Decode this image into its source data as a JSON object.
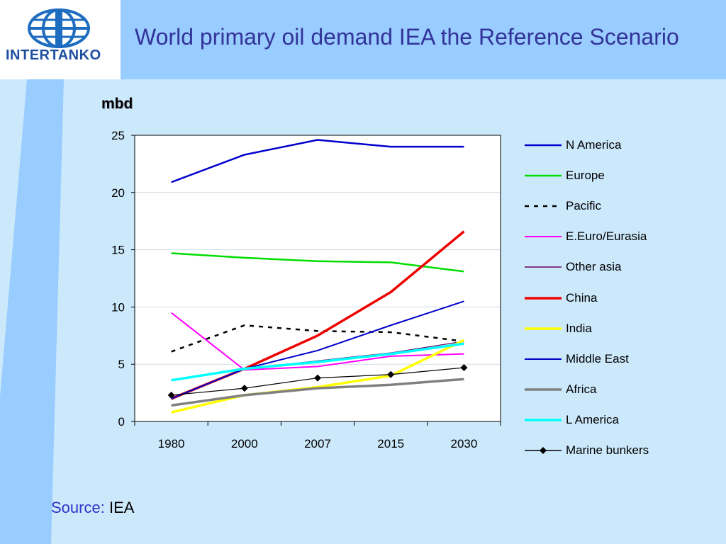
{
  "slide": {
    "title": "World primary oil demand IEA the Reference Scenario",
    "logo_text": "INTERTANKO",
    "source_label": "Source:",
    "source_value": "IEA"
  },
  "colors": {
    "header_band": "#99ccff",
    "background": "#cce8fb",
    "title": "#333399"
  },
  "chart_data": {
    "type": "line",
    "ylabel": "mbd",
    "categories": [
      "1980",
      "2000",
      "2007",
      "2015",
      "2030"
    ],
    "ylim": [
      0,
      25
    ],
    "yticks": [
      0,
      5,
      10,
      15,
      20,
      25
    ],
    "grid": true,
    "legend_position": "right",
    "series": [
      {
        "name": "N America",
        "color": "#0000cc",
        "width": 2.5,
        "dash": "",
        "marker": "",
        "values": [
          20.9,
          23.3,
          24.6,
          24.0,
          24.0
        ]
      },
      {
        "name": "Europe",
        "color": "#00dd00",
        "width": 2.5,
        "dash": "",
        "marker": "",
        "values": [
          14.7,
          14.3,
          14.0,
          13.9,
          13.1
        ]
      },
      {
        "name": "Pacific",
        "color": "#000000",
        "width": 2.5,
        "dash": "6,7",
        "marker": "",
        "values": [
          6.1,
          8.4,
          7.9,
          7.8,
          7.0
        ]
      },
      {
        "name": "E.Euro/Eurasia",
        "color": "#ff00ff",
        "width": 2,
        "dash": "",
        "marker": "",
        "values": [
          9.5,
          4.5,
          4.8,
          5.7,
          5.9
        ]
      },
      {
        "name": "Other asia",
        "color": "#660066",
        "width": 1.2,
        "dash": "",
        "marker": "",
        "values": [
          1.9,
          4.6,
          5.3,
          6.0,
          7.0
        ]
      },
      {
        "name": "China",
        "color": "#ee0000",
        "width": 3.5,
        "dash": "",
        "marker": "",
        "values": [
          2.0,
          4.6,
          7.5,
          11.3,
          16.6
        ]
      },
      {
        "name": "India",
        "color": "#ffff00",
        "width": 3.5,
        "dash": "",
        "marker": "",
        "values": [
          0.8,
          2.3,
          3.0,
          4.0,
          7.1
        ]
      },
      {
        "name": "Middle East",
        "color": "#0000cc",
        "width": 2,
        "dash": "",
        "marker": "",
        "values": [
          2.0,
          4.6,
          6.2,
          8.4,
          10.5
        ]
      },
      {
        "name": "Africa",
        "color": "#808080",
        "width": 3.5,
        "dash": "",
        "marker": "",
        "values": [
          1.4,
          2.3,
          2.9,
          3.2,
          3.7
        ]
      },
      {
        "name": "L America",
        "color": "#00ffff",
        "width": 3.5,
        "dash": "",
        "marker": "",
        "values": [
          3.6,
          4.6,
          5.2,
          5.9,
          6.8
        ]
      },
      {
        "name": "Marine bunkers",
        "color": "#000000",
        "width": 1.2,
        "dash": "",
        "marker": "diamond",
        "values": [
          2.3,
          2.9,
          3.8,
          4.1,
          4.7
        ]
      }
    ]
  }
}
